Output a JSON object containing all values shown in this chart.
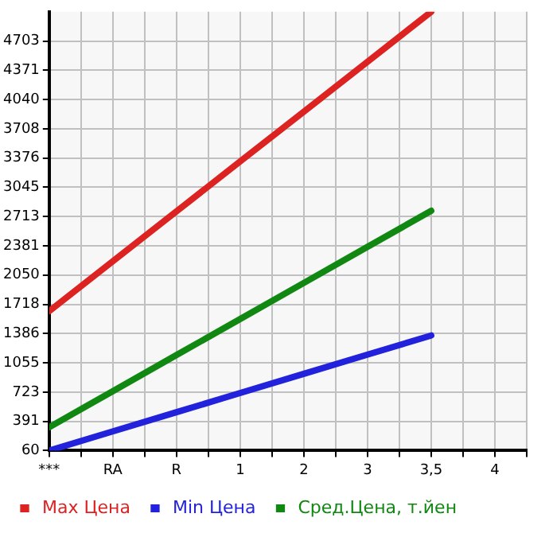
{
  "chart_data": {
    "type": "line",
    "categories": [
      "***",
      "RA",
      "R",
      "1",
      "2",
      "3",
      "3,5",
      "4"
    ],
    "series": [
      {
        "name": "Max Цена",
        "color": "#dd2222",
        "values": [
          1640,
          2206,
          2772,
          3338,
          3903,
          4469,
          5035,
          null
        ]
      },
      {
        "name": "Min Цена",
        "color": "#2222dd",
        "values": [
          60,
          278,
          495,
          713,
          930,
          1148,
          1365,
          null
        ]
      },
      {
        "name": "Сред.Цена, т.йен",
        "color": "#118811",
        "values": [
          325,
          734,
          1143,
          1552,
          1961,
          2370,
          2779,
          null
        ]
      }
    ],
    "ylim": [
      60,
      5035
    ],
    "yticks": [
      60,
      391,
      723,
      1055,
      1386,
      1718,
      2050,
      2381,
      2713,
      3045,
      3376,
      3708,
      4040,
      4371,
      4703
    ],
    "grid": true,
    "legend": "bottom",
    "marker": "none",
    "line_style": "solid"
  }
}
